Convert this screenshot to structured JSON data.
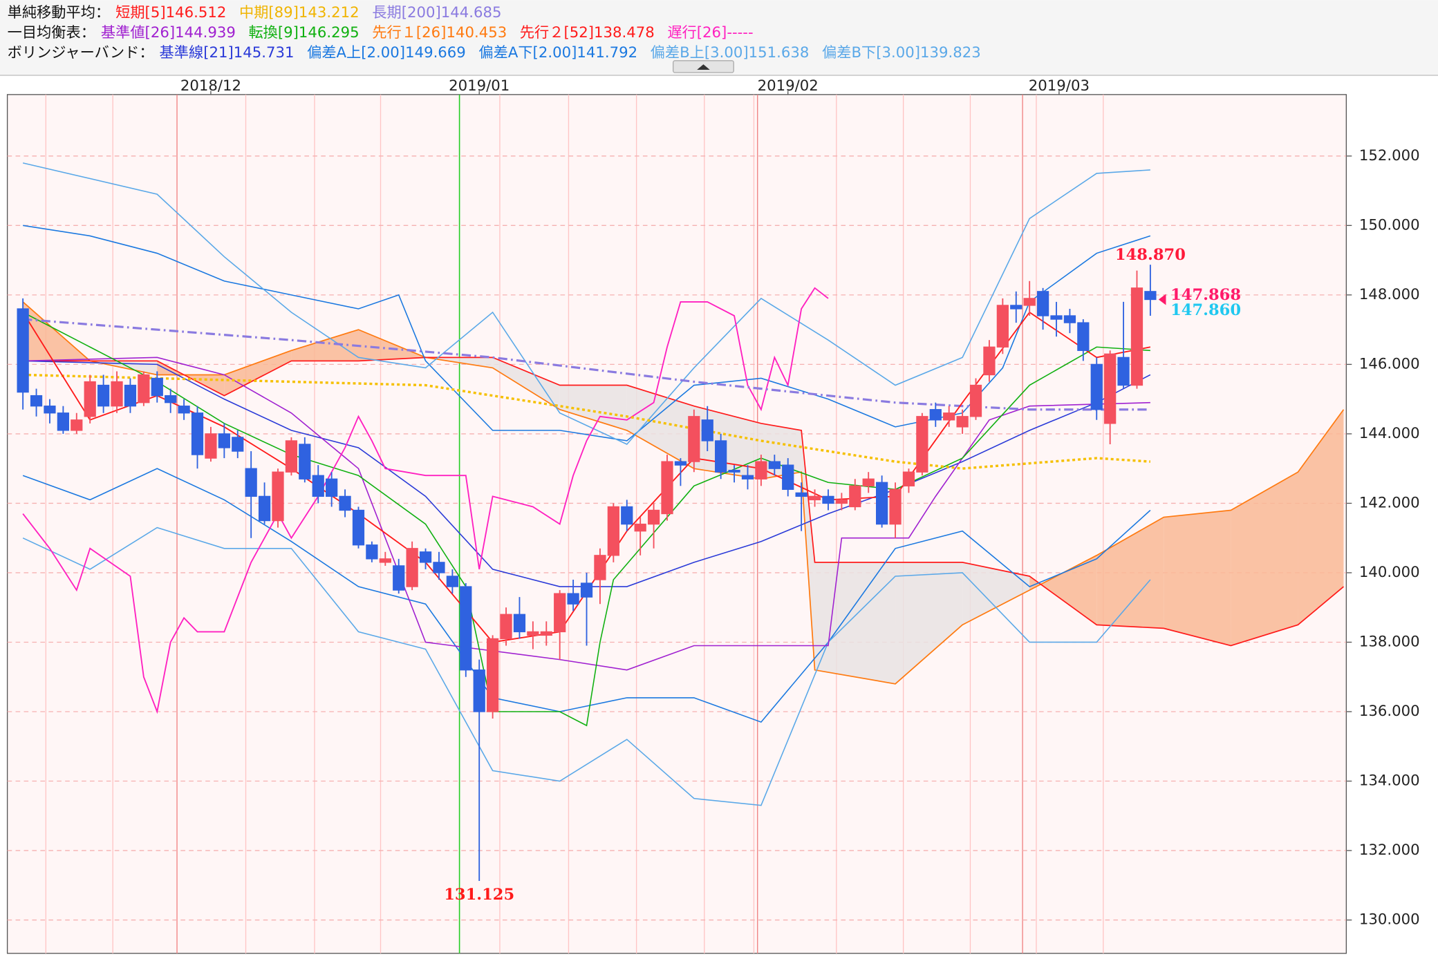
{
  "chart_data": {
    "type": "candlestick",
    "header": [
      {
        "label": "単純移動平均：",
        "items": [
          {
            "text": "短期[5]146.512",
            "color": "#ff1a1a"
          },
          {
            "text": "中期[89]143.212",
            "color": "#f0b400"
          },
          {
            "text": "長期[200]144.685",
            "color": "#8a7ae0"
          }
        ]
      },
      {
        "label": "一目均衡表：",
        "items": [
          {
            "text": "基準値[26]144.939",
            "color": "#a020d0"
          },
          {
            "text": "転換[9]146.295",
            "color": "#10b010"
          },
          {
            "text": "先行１[26]140.453",
            "color": "#ff7a10"
          },
          {
            "text": "先行２[52]138.478",
            "color": "#ff1a1a"
          },
          {
            "text": "遅行[26]-----",
            "color": "#ff20c0"
          }
        ]
      },
      {
        "label": "ボリンジャーバンド：",
        "items": [
          {
            "text": "基準線[21]145.731",
            "color": "#2a3ad8"
          },
          {
            "text": "偏差A上[2.00]149.669",
            "color": "#1a78e0"
          },
          {
            "text": "偏差A下[2.00]141.792",
            "color": "#1a78e0"
          },
          {
            "text": "偏差B上[3.00]151.638",
            "color": "#5aa8e8"
          },
          {
            "text": "偏差B下[3.00]139.823",
            "color": "#5aa8e8"
          }
        ]
      }
    ],
    "open": [
      147.6,
      145.1,
      144.8,
      144.6,
      144.1,
      144.5,
      145.4,
      144.8,
      145.4,
      144.9,
      145.6,
      145.1,
      144.8,
      144.6,
      143.3,
      144.0,
      143.9,
      143.0,
      142.2,
      141.5,
      142.9,
      143.7,
      142.8,
      142.7,
      142.2,
      141.8,
      140.8,
      140.3,
      140.2,
      139.6,
      140.6,
      140.3,
      139.9,
      139.6,
      137.2,
      136.0,
      138.1,
      138.8,
      138.2,
      138.2,
      138.3,
      139.4,
      139.7,
      139.8,
      140.5,
      141.9,
      141.2,
      141.4,
      141.7,
      143.2,
      143.2,
      144.4,
      143.8,
      142.95,
      142.8,
      142.7,
      143.2,
      143.1,
      142.3,
      142.1,
      142.2,
      142.0,
      141.9,
      142.5,
      142.6,
      141.4,
      142.5,
      142.9,
      144.7,
      144.4,
      144.2,
      144.5,
      145.7,
      146.5,
      147.7,
      147.7,
      148.1,
      147.4,
      147.4,
      147.2,
      146.0,
      144.3,
      146.2,
      145.4,
      148.1
    ],
    "close": [
      145.2,
      144.8,
      144.6,
      144.1,
      144.4,
      145.5,
      144.8,
      145.5,
      144.8,
      145.7,
      145.1,
      144.9,
      144.6,
      143.4,
      144.0,
      143.6,
      143.5,
      142.2,
      141.5,
      142.9,
      143.8,
      142.7,
      142.2,
      142.2,
      141.8,
      140.8,
      140.4,
      140.4,
      139.5,
      140.7,
      140.3,
      140.0,
      139.6,
      137.2,
      136.0,
      138.1,
      138.8,
      138.3,
      138.3,
      138.3,
      139.4,
      139.1,
      139.3,
      140.5,
      141.9,
      141.4,
      141.4,
      141.8,
      143.2,
      143.1,
      144.5,
      143.8,
      142.9,
      142.9,
      142.7,
      143.2,
      143.0,
      142.4,
      142.2,
      142.2,
      142.0,
      142.1,
      142.5,
      142.7,
      141.4,
      142.4,
      142.9,
      144.5,
      144.4,
      144.6,
      144.5,
      145.4,
      146.5,
      147.7,
      147.6,
      147.9,
      147.4,
      147.3,
      147.2,
      146.4,
      144.7,
      146.3,
      145.4,
      148.2,
      147.868
    ],
    "high": [
      147.9,
      145.3,
      145.0,
      144.8,
      144.6,
      145.7,
      145.7,
      145.8,
      145.6,
      145.8,
      145.8,
      145.3,
      145.0,
      144.8,
      144.2,
      144.3,
      144.1,
      143.5,
      142.6,
      143.0,
      143.9,
      143.9,
      143.1,
      142.9,
      142.4,
      141.9,
      140.9,
      140.6,
      140.4,
      140.9,
      140.7,
      140.6,
      140.1,
      139.7,
      137.5,
      138.2,
      139.0,
      139.3,
      138.6,
      138.6,
      139.5,
      139.8,
      140.0,
      140.7,
      142.0,
      142.1,
      141.6,
      142.0,
      143.4,
      143.3,
      144.7,
      144.8,
      144.0,
      143.1,
      143.1,
      143.4,
      143.4,
      143.3,
      142.6,
      142.4,
      142.4,
      142.3,
      142.7,
      142.9,
      142.8,
      142.6,
      143.0,
      144.6,
      144.9,
      144.8,
      144.7,
      145.6,
      146.7,
      147.9,
      148.1,
      148.4,
      148.2,
      147.8,
      147.6,
      147.3,
      146.2,
      146.4,
      147.8,
      148.7,
      148.87
    ],
    "low": [
      144.7,
      144.5,
      144.3,
      144.0,
      144.0,
      144.3,
      144.6,
      144.6,
      144.6,
      144.8,
      144.9,
      144.6,
      144.4,
      143.0,
      143.2,
      143.3,
      143.3,
      141.0,
      141.4,
      141.3,
      142.8,
      142.6,
      142.0,
      141.9,
      141.6,
      140.7,
      140.3,
      140.2,
      139.4,
      139.5,
      140.1,
      139.8,
      139.4,
      137.0,
      131.125,
      135.8,
      137.9,
      138.1,
      137.8,
      137.9,
      137.5,
      138.9,
      137.9,
      139.1,
      140.3,
      141.2,
      140.5,
      140.7,
      141.5,
      142.5,
      142.9,
      143.5,
      142.7,
      142.6,
      142.4,
      142.5,
      142.8,
      142.2,
      141.2,
      141.9,
      141.8,
      141.8,
      141.8,
      142.3,
      141.3,
      141.0,
      142.3,
      142.8,
      144.2,
      144.2,
      144.0,
      144.4,
      145.5,
      146.3,
      147.2,
      147.4,
      147.0,
      146.8,
      146.9,
      146.1,
      144.4,
      143.7,
      145.3,
      145.3,
      147.4
    ],
    "up_color": "#f4505e",
    "down_color": "#2f62e0",
    "xlim": [
      -1.16,
      98.6
    ],
    "ylim": [
      129.04,
      153.77
    ],
    "xticks": [
      {
        "value": 14.0,
        "label": "2018/12"
      },
      {
        "value": 34.0,
        "label": "2019/01"
      },
      {
        "value": 57.0,
        "label": "2019/02"
      },
      {
        "value": 77.2,
        "label": "2019/03"
      }
    ],
    "yticks": [
      {
        "value": 130,
        "label": "130.000"
      },
      {
        "value": 132,
        "label": "132.000"
      },
      {
        "value": 134,
        "label": "134.000"
      },
      {
        "value": 136,
        "label": "136.000"
      },
      {
        "value": 138,
        "label": "138.000"
      },
      {
        "value": 140,
        "label": "140.000"
      },
      {
        "value": 142,
        "label": "142.000"
      },
      {
        "value": 144,
        "label": "144.000"
      },
      {
        "value": 146,
        "label": "146.000"
      },
      {
        "value": 148,
        "label": "148.000"
      },
      {
        "value": 150,
        "label": "150.000"
      },
      {
        "value": 152,
        "label": "152.000"
      }
    ],
    "grid": true,
    "cloud": {
      "x": [
        0,
        5,
        10,
        15,
        20,
        25,
        30,
        35,
        40,
        45,
        50,
        55,
        58,
        59,
        65,
        70,
        75,
        80,
        85,
        90,
        95,
        98.4
      ],
      "span_a": [
        147.8,
        146.1,
        145.7,
        145.7,
        146.4,
        147.0,
        146.2,
        145.9,
        144.7,
        144.1,
        143.0,
        142.7,
        142.9,
        137.2,
        136.8,
        138.5,
        139.5,
        140.5,
        141.6,
        141.8,
        142.9,
        144.7
      ],
      "span_b": [
        146.1,
        146.1,
        146.1,
        145.1,
        146.1,
        146.1,
        146.2,
        146.2,
        145.4,
        145.4,
        144.8,
        144.3,
        144.1,
        140.3,
        140.3,
        140.3,
        139.9,
        138.5,
        138.4,
        137.9,
        138.5,
        139.6
      ],
      "color_a": "#ff7a10",
      "color_b": "#ff1a1a",
      "fill_up": "#f9b995",
      "fill_down": "#e9e3e3"
    },
    "overlays": [
      {
        "color": "#2a3ad8",
        "width": 1.2,
        "x": [
          0,
          10,
          15,
          20,
          25,
          30,
          35,
          40,
          45,
          50,
          55,
          60,
          65,
          70,
          75,
          80,
          84
        ],
        "values": [
          146.1,
          146.0,
          145.0,
          144.1,
          143.6,
          142.2,
          140.1,
          139.6,
          139.6,
          140.3,
          140.9,
          141.7,
          142.4,
          143.2,
          144.1,
          144.9,
          145.7
        ]
      },
      {
        "color": "#1a78e0",
        "width": 1.2,
        "x": [
          0,
          5,
          10,
          15,
          20,
          25,
          28,
          30,
          35,
          40,
          45,
          50,
          55,
          60,
          65,
          70,
          73,
          75,
          80,
          84
        ],
        "values": [
          150.0,
          149.7,
          149.2,
          148.4,
          148.0,
          147.6,
          148.0,
          146.1,
          144.1,
          144.1,
          143.8,
          145.4,
          145.6,
          145.0,
          144.2,
          144.6,
          145.9,
          147.8,
          149.2,
          149.7
        ]
      },
      {
        "color": "#1a78e0",
        "width": 1.2,
        "x": [
          0,
          5,
          10,
          15,
          20,
          25,
          30,
          35,
          40,
          45,
          50,
          55,
          60,
          65,
          70,
          75,
          80,
          84
        ],
        "values": [
          142.8,
          142.1,
          143.0,
          142.1,
          140.9,
          139.6,
          139.1,
          136.4,
          136.0,
          136.4,
          136.4,
          135.7,
          138.0,
          140.7,
          141.2,
          139.6,
          140.4,
          141.8
        ]
      },
      {
        "color": "#5aa8e8",
        "width": 1.2,
        "x": [
          0,
          10,
          15,
          20,
          25,
          30,
          35,
          40,
          45,
          50,
          55,
          60,
          65,
          70,
          75,
          80,
          84
        ],
        "values": [
          151.8,
          150.9,
          149.1,
          147.5,
          146.2,
          145.9,
          147.5,
          144.6,
          143.7,
          145.9,
          147.9,
          146.7,
          145.4,
          146.2,
          150.2,
          151.5,
          151.6
        ]
      },
      {
        "color": "#5aa8e8",
        "width": 1.2,
        "x": [
          0,
          5,
          10,
          15,
          20,
          25,
          30,
          35,
          40,
          45,
          50,
          55,
          60,
          65,
          70,
          75,
          80,
          84
        ],
        "values": [
          141.0,
          140.1,
          141.3,
          140.7,
          140.7,
          138.3,
          137.8,
          134.3,
          134.0,
          135.2,
          133.5,
          133.3,
          138.0,
          139.9,
          140.0,
          138.0,
          138.0,
          139.8
        ]
      },
      {
        "color": "#a020d0",
        "width": 1.2,
        "x": [
          0,
          10,
          15,
          20,
          25,
          30,
          40,
          45,
          50,
          60,
          61,
          66,
          68,
          70,
          72,
          75,
          84
        ],
        "values": [
          146.1,
          146.2,
          145.7,
          144.6,
          143.0,
          138.0,
          137.5,
          137.2,
          137.9,
          137.9,
          141.0,
          141.0,
          142.2,
          143.3,
          144.4,
          144.8,
          144.9
        ]
      },
      {
        "color": "#10b010",
        "width": 1.2,
        "x": [
          0,
          5,
          10,
          15,
          20,
          25,
          30,
          33,
          35,
          40,
          42,
          43,
          44,
          50,
          55,
          60,
          65,
          70,
          75,
          80,
          84
        ],
        "values": [
          147.5,
          146.5,
          145.5,
          144.3,
          143.4,
          142.8,
          141.4,
          139.6,
          136.0,
          136.0,
          135.6,
          138.0,
          139.8,
          142.5,
          143.3,
          142.6,
          142.4,
          143.3,
          145.4,
          146.5,
          146.4
        ]
      },
      {
        "color": "#ff20c0",
        "width": 1.4,
        "x": [
          0,
          2,
          4,
          5,
          8,
          9,
          10,
          11,
          12,
          13,
          15,
          17,
          19,
          20,
          22,
          24,
          25,
          26,
          27,
          30,
          33,
          34,
          35,
          38,
          40,
          41,
          42,
          43,
          45,
          47,
          48,
          49,
          51,
          53,
          54,
          55,
          56,
          57,
          58,
          59,
          60
        ],
        "values": [
          141.7,
          140.7,
          139.5,
          140.7,
          139.9,
          137.0,
          136.0,
          138.0,
          138.7,
          138.3,
          138.3,
          140.3,
          141.7,
          141.0,
          142.2,
          143.6,
          144.5,
          143.8,
          143.0,
          142.8,
          142.8,
          140.1,
          142.2,
          141.9,
          141.4,
          142.8,
          143.8,
          144.5,
          144.4,
          144.9,
          146.5,
          147.8,
          147.8,
          147.4,
          145.4,
          144.7,
          146.2,
          145.4,
          147.6,
          148.2,
          147.9
        ]
      },
      {
        "color": "#8a7ae0",
        "width": 2.4,
        "dash": "10,4,2,4",
        "x": [
          0,
          20,
          35,
          50,
          65,
          75,
          84
        ],
        "values": [
          147.3,
          146.7,
          146.2,
          145.5,
          144.9,
          144.7,
          144.7
        ]
      },
      {
        "color": "#f5c000",
        "width": 2.6,
        "dash": "3,3",
        "x": [
          0,
          20,
          30,
          35,
          45,
          55,
          65,
          70,
          80,
          84
        ],
        "values": [
          145.7,
          145.5,
          145.4,
          145.1,
          144.5,
          143.8,
          143.2,
          143.0,
          143.3,
          143.2
        ]
      },
      {
        "color": "#ff1a1a",
        "width": 1.4,
        "x": [
          0,
          5,
          10,
          15,
          20,
          25,
          30,
          35,
          40,
          45,
          50,
          55,
          60,
          65,
          70,
          75,
          80,
          84
        ],
        "values": [
          147.5,
          144.4,
          145.1,
          144.2,
          143.0,
          141.7,
          140.3,
          138.0,
          138.3,
          141.2,
          143.3,
          143.0,
          142.1,
          142.2,
          144.9,
          147.5,
          146.2,
          146.5
        ]
      }
    ],
    "annotations": [
      {
        "label": "131.125",
        "value": 131.125,
        "x": 34,
        "color": "#ff1a1a",
        "placement": "below"
      },
      {
        "label": "148.870",
        "value": 148.87,
        "x": 84,
        "color": "#ff1a3a",
        "placement": "above"
      },
      {
        "label": "147.868",
        "value": 147.868,
        "x": 84,
        "color": "#ff1a6a",
        "placement": "right"
      },
      {
        "label": "147.860",
        "value": 147.86,
        "x": 84,
        "color": "#20c8f0",
        "placement": "right-below"
      }
    ]
  }
}
